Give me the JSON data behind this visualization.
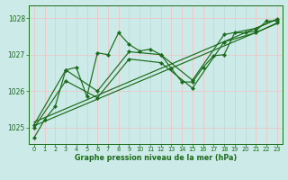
{
  "bg_color": "#cceae7",
  "grid_color": "#b0d8d4",
  "line_color": "#1a6b1a",
  "marker_color": "#1a6b1a",
  "xlabel": "Graphe pression niveau de la mer (hPa)",
  "xlabel_color": "#1a6b1a",
  "ylabel_ticks": [
    1025,
    1026,
    1027,
    1028
  ],
  "xlim": [
    -0.5,
    23.5
  ],
  "ylim": [
    1024.55,
    1028.35
  ],
  "series1_x": [
    0,
    1,
    2,
    3,
    4,
    5,
    6,
    7,
    8,
    9,
    10,
    11,
    12,
    13,
    14,
    15,
    16,
    17,
    18,
    19,
    20,
    21,
    22,
    23
  ],
  "series1_y": [
    1024.72,
    1025.22,
    1025.58,
    1026.58,
    1026.65,
    1025.85,
    1027.05,
    1027.0,
    1027.6,
    1027.28,
    1027.1,
    1027.15,
    1027.0,
    1026.62,
    1026.25,
    1026.25,
    1026.65,
    1026.97,
    1027.0,
    1027.6,
    1027.6,
    1027.65,
    1027.92,
    1027.93
  ],
  "series2_x": [
    0,
    3,
    6,
    9,
    12,
    15,
    18,
    21,
    23
  ],
  "series2_y": [
    1025.08,
    1026.58,
    1026.0,
    1027.08,
    1027.0,
    1026.3,
    1027.55,
    1027.72,
    1027.97
  ],
  "series3_x": [
    0,
    3,
    6,
    9,
    12,
    15,
    18,
    21,
    23
  ],
  "series3_y": [
    1025.0,
    1026.28,
    1025.82,
    1026.88,
    1026.78,
    1026.08,
    1027.35,
    1027.6,
    1027.87
  ],
  "trend_x": [
    0,
    23
  ],
  "trend_y": [
    1025.15,
    1027.97
  ],
  "trend2_x": [
    0,
    23
  ],
  "trend2_y": [
    1025.05,
    1027.85
  ]
}
